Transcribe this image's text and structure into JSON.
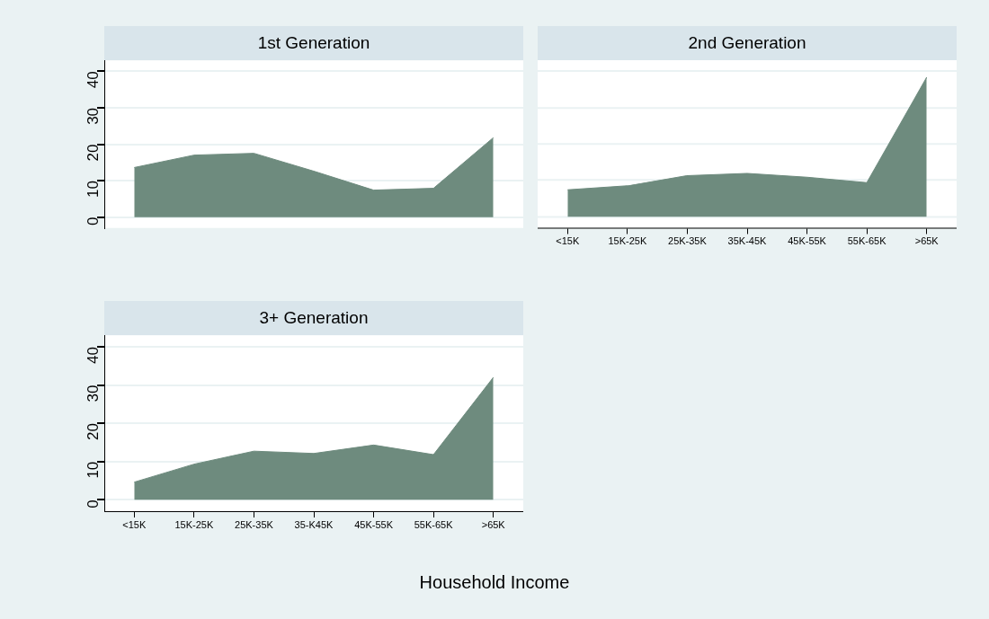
{
  "chart_data": [
    {
      "type": "area",
      "title": "1st Generation",
      "categories": [
        null,
        null,
        null,
        null,
        null,
        null,
        null
      ],
      "values": [
        13.6,
        17.0,
        17.5,
        12.6,
        7.4,
        7.9,
        21.8
      ],
      "color": "#6e8b7e",
      "ylim": [
        -3,
        43
      ],
      "yticks": [
        0,
        10,
        20,
        30,
        40
      ],
      "grid": "y",
      "tick_labels": "y"
    },
    {
      "type": "area",
      "title": "2nd Generation",
      "categories": [
        "<15K",
        "15K-25K",
        "25K-35K",
        "35K-45K",
        "45K-55K",
        "55K-65K",
        ">65K"
      ],
      "values": [
        7.4,
        8.5,
        11.3,
        11.9,
        10.9,
        9.4,
        38.3
      ],
      "color": "#6e8b7e",
      "ylim": [
        -3,
        43
      ],
      "yticks": [
        0,
        10,
        20,
        30,
        40
      ],
      "grid": "y",
      "tick_labels": "x"
    },
    {
      "type": "area",
      "title": "3+ Generation",
      "xlabel": "Household Income",
      "categories": [
        "<15K",
        "15K-25K",
        "25K-35K",
        "35-K45K",
        "45K-55K",
        "55K-65K",
        ">65K"
      ],
      "values": [
        4.6,
        9.3,
        12.7,
        12.1,
        14.3,
        11.8,
        32.0
      ],
      "color": "#6e8b7e",
      "ylim": [
        -3,
        43
      ],
      "yticks": [
        0,
        10,
        20,
        30,
        40
      ],
      "grid": "y"
    }
  ]
}
